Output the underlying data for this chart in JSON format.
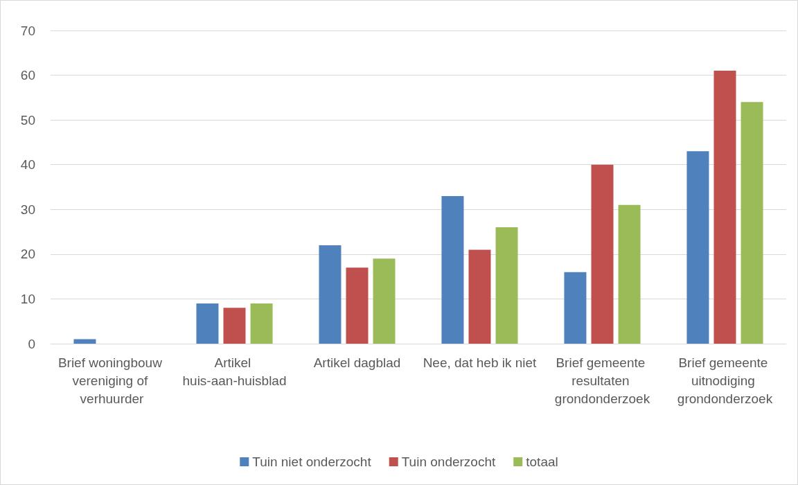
{
  "chart_data": {
    "type": "bar",
    "categories": [
      "Brief woningbouw vereniging of verhuurder",
      "Artikel huis-aan-huisblad",
      "Artikel dagblad",
      "Nee, dat heb ik niet",
      "Brief gemeente resultaten grondonderzoek",
      "Brief gemeente uitnodiging grondonderzoek"
    ],
    "series": [
      {
        "name": "Tuin niet onderzocht",
        "color": "#4f81bd",
        "values": [
          1,
          9,
          22,
          33,
          16,
          43
        ]
      },
      {
        "name": "Tuin onderzocht",
        "color": "#c0504d",
        "values": [
          0,
          8,
          17,
          21,
          40,
          61
        ]
      },
      {
        "name": "totaal",
        "color": "#9bbb59",
        "values": [
          0,
          9,
          19,
          26,
          31,
          54
        ]
      }
    ],
    "ylim": [
      0,
      70
    ],
    "yticks": [
      0,
      10,
      20,
      30,
      40,
      50,
      60,
      70
    ],
    "grid": "y",
    "legend": "bottom"
  }
}
